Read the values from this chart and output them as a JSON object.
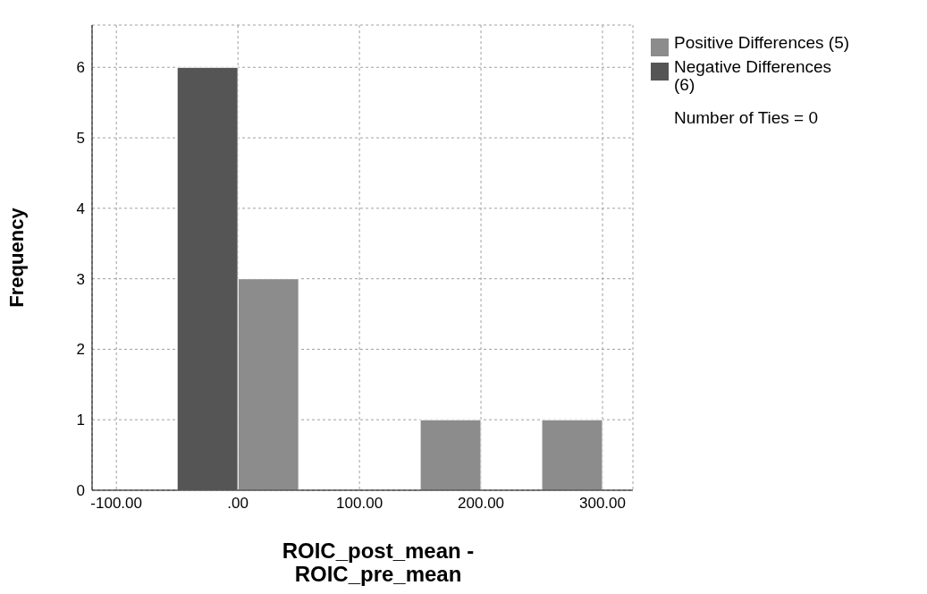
{
  "chart_data": {
    "type": "histogram",
    "xlabel": "ROIC_post_mean - ROIC_pre_mean",
    "ylabel": "Frequency",
    "bins": [
      -50,
      0,
      50,
      100,
      150,
      200,
      250,
      300
    ],
    "series": [
      {
        "name": "Positive Differences (5)",
        "color": "#8c8c8c",
        "values": [
          0,
          3,
          0,
          0,
          1,
          0,
          1
        ]
      },
      {
        "name": "Negative Differences (6)",
        "color": "#555555",
        "values": [
          6,
          0,
          0,
          0,
          0,
          0,
          0
        ]
      }
    ],
    "xlim": [
      -120,
      325
    ],
    "xticks": [
      {
        "value": -100,
        "label": "-100.00"
      },
      {
        "value": 0,
        "label": ".00"
      },
      {
        "value": 100,
        "label": "100.00"
      },
      {
        "value": 200,
        "label": "200.00"
      },
      {
        "value": 300,
        "label": "300.00"
      }
    ],
    "ylim": [
      0,
      6.6
    ],
    "yticks": [
      0,
      1,
      2,
      3,
      4,
      5,
      6
    ],
    "grid": true,
    "legend": "top right",
    "annotations": [
      "Number of Ties = 0"
    ]
  }
}
